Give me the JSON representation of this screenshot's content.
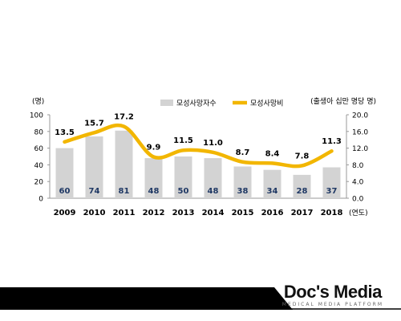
{
  "chart_data": {
    "type": "bar+line",
    "categories": [
      "2009",
      "2010",
      "2011",
      "2012",
      "2013",
      "2014",
      "2015",
      "2016",
      "2017",
      "2018"
    ],
    "x_unit_label": "(연도)",
    "bars": {
      "name": "모성사망자수",
      "values": [
        60,
        74,
        81,
        48,
        50,
        48,
        38,
        34,
        28,
        37
      ],
      "color": "#d3d3d3",
      "label_color": "#1f3864"
    },
    "line": {
      "name": "모성사망비",
      "values": [
        13.5,
        15.7,
        17.2,
        9.9,
        11.5,
        11.0,
        8.7,
        8.4,
        7.8,
        11.3
      ],
      "color": "#f2b600"
    },
    "y_left": {
      "unit": "(명)",
      "ticks": [
        "0",
        "20",
        "40",
        "60",
        "80",
        "100"
      ],
      "range": [
        0,
        100
      ]
    },
    "y_right": {
      "unit": "(출생아 십만 명당 명)",
      "ticks": [
        "0.0",
        "4.0",
        "8.0",
        "12.0",
        "16.0",
        "20.0"
      ],
      "range": [
        0,
        20
      ]
    },
    "grid": false,
    "legend": "top-center"
  },
  "footer": {
    "logo_text": "Doc's Media",
    "logo_subtext": "MEDICAL MEDIA PLATFORM"
  }
}
